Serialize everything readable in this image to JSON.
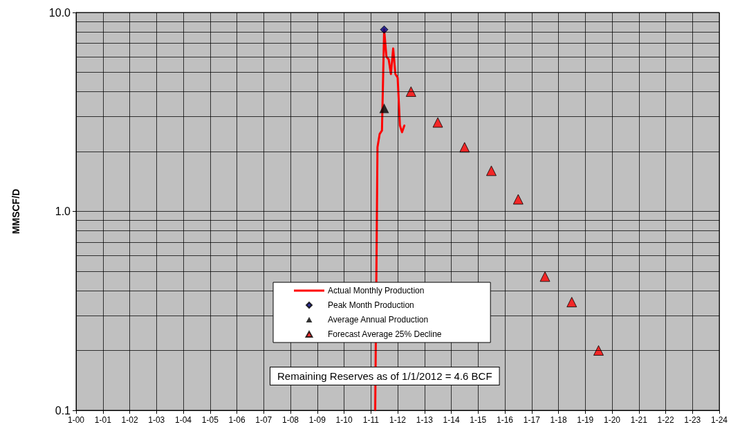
{
  "chart_data": {
    "type": "line",
    "ylabel": "MMSCF/D",
    "log": "y",
    "grid": true,
    "legend": "bottom",
    "xlim": [
      "2000-01",
      "2024-01"
    ],
    "xticks": [
      {
        "value": "2000-01",
        "label": "1-00"
      },
      {
        "value": "2001-01",
        "label": "1-01"
      },
      {
        "value": "2002-01",
        "label": "1-02"
      },
      {
        "value": "2003-01",
        "label": "1-03"
      },
      {
        "value": "2004-01",
        "label": "1-04"
      },
      {
        "value": "2005-01",
        "label": "1-05"
      },
      {
        "value": "2006-01",
        "label": "1-06"
      },
      {
        "value": "2007-01",
        "label": "1-07"
      },
      {
        "value": "2008-01",
        "label": "1-08"
      },
      {
        "value": "2009-01",
        "label": "1-09"
      },
      {
        "value": "2010-01",
        "label": "1-10"
      },
      {
        "value": "2011-01",
        "label": "1-11"
      },
      {
        "value": "2012-01",
        "label": "1-12"
      },
      {
        "value": "2013-01",
        "label": "1-13"
      },
      {
        "value": "2014-01",
        "label": "1-14"
      },
      {
        "value": "2015-01",
        "label": "1-15"
      },
      {
        "value": "2016-01",
        "label": "1-16"
      },
      {
        "value": "2017-01",
        "label": "1-17"
      },
      {
        "value": "2018-01",
        "label": "1-18"
      },
      {
        "value": "2019-01",
        "label": "1-19"
      },
      {
        "value": "2020-01",
        "label": "1-20"
      },
      {
        "value": "2021-01",
        "label": "1-21"
      },
      {
        "value": "2022-01",
        "label": "1-22"
      },
      {
        "value": "2023-01",
        "label": "1-23"
      },
      {
        "value": "2024-01",
        "label": "1-24"
      }
    ],
    "ylim": [
      0.1,
      10
    ],
    "yticks": [
      {
        "value": 0.1,
        "label": "0.1"
      },
      {
        "value": 0.2,
        "label": null
      },
      {
        "value": 0.3,
        "label": null
      },
      {
        "value": 0.4,
        "label": null
      },
      {
        "value": 0.5,
        "label": null
      },
      {
        "value": 0.6,
        "label": null
      },
      {
        "value": 0.7,
        "label": null
      },
      {
        "value": 0.8,
        "label": null
      },
      {
        "value": 0.9,
        "label": null
      },
      {
        "value": 1,
        "label": "1.0"
      },
      {
        "value": 2,
        "label": null
      },
      {
        "value": 3,
        "label": null
      },
      {
        "value": 4,
        "label": null
      },
      {
        "value": 5,
        "label": null
      },
      {
        "value": 6,
        "label": null
      },
      {
        "value": 7,
        "label": null
      },
      {
        "value": 8,
        "label": null
      },
      {
        "value": 9,
        "label": null
      },
      {
        "value": 10,
        "label": "10.0"
      }
    ],
    "series": [
      {
        "name": "Actual Monthly Production",
        "type": "line",
        "color": "#ff0000",
        "marker": "none",
        "x": [
          "2011-03",
          "2011-04",
          "2011-05",
          "2011-06",
          "2011-07",
          "2011-08",
          "2011-09",
          "2011-10",
          "2011-11",
          "2011-12",
          "2012-01",
          "2012-02",
          "2012-03",
          "2012-04"
        ],
        "values": [
          0.1,
          2.1,
          2.45,
          2.55,
          8.2,
          6.0,
          5.8,
          4.9,
          6.6,
          4.9,
          4.7,
          2.7,
          2.5,
          2.7
        ]
      },
      {
        "name": "Peak Month Production",
        "type": "scatter",
        "color": "#000080",
        "marker": "diamond",
        "x": [
          "2011-07"
        ],
        "values": [
          8.2
        ]
      },
      {
        "name": "Average Annual Production",
        "type": "scatter",
        "color": "#000000",
        "marker": "triangle",
        "x": [
          "2011-07"
        ],
        "values": [
          3.3
        ]
      },
      {
        "name": "Forecast Average 25% Decline",
        "type": "scatter",
        "color": "#ff0000",
        "marker": "triangle",
        "x": [
          "2012-07",
          "2013-07",
          "2014-07",
          "2015-07",
          "2016-07",
          "2017-07",
          "2018-07",
          "2019-07"
        ],
        "values": [
          4.0,
          2.8,
          2.1,
          1.6,
          1.15,
          0.47,
          0.35,
          0.2
        ]
      }
    ],
    "annotations": [
      "Remaining Reserves as of 1/1/2012 = 4.6 BCF"
    ]
  }
}
